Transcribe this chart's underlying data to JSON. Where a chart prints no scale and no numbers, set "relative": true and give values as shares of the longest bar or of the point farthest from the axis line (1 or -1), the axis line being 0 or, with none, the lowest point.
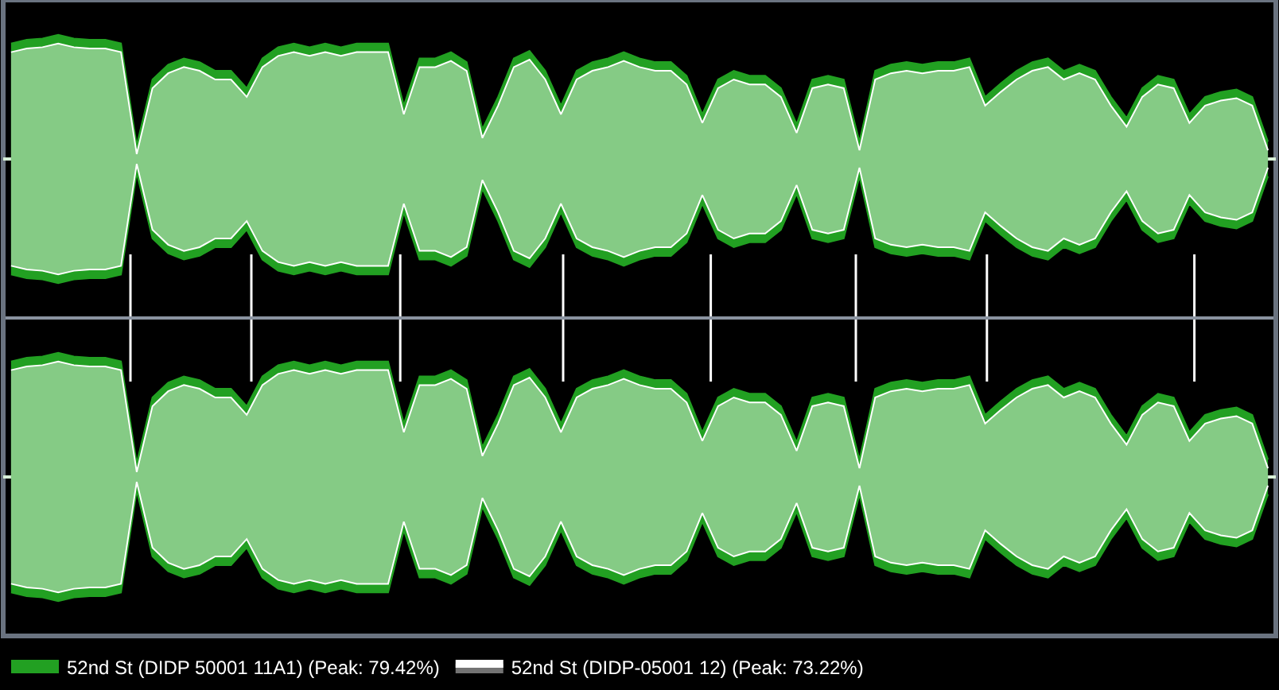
{
  "chart_data": [
    {
      "type": "area",
      "relative": true,
      "legend": "bottom left",
      "grid": false,
      "categories": [
        null,
        null,
        null,
        null,
        null,
        null,
        null,
        null,
        null,
        null,
        null,
        null,
        null,
        null,
        null,
        null,
        null,
        null,
        null,
        null,
        null,
        null,
        null,
        null,
        null,
        null,
        null,
        null,
        null,
        null,
        null,
        null,
        null,
        null,
        null,
        null,
        null,
        null,
        null,
        null,
        null,
        null,
        null,
        null,
        null,
        null,
        null,
        null,
        null,
        null,
        null,
        null,
        null,
        null,
        null,
        null,
        null,
        null,
        null,
        null,
        null,
        null,
        null,
        null,
        null,
        null,
        null,
        null,
        null,
        null,
        null,
        null,
        null,
        null,
        null,
        null,
        null,
        null,
        null,
        null,
        null
      ],
      "series": [
        {
          "name": "52nd St (DIDP 50001 11A1) (Peak: 79.42%)",
          "color": "#22a022",
          "values": [
            0.93,
            0.96,
            0.97,
            1.0,
            0.97,
            0.96,
            0.96,
            0.93,
            0.11,
            0.64,
            0.76,
            0.81,
            0.78,
            0.71,
            0.71,
            0.57,
            0.81,
            0.9,
            0.93,
            0.9,
            0.93,
            0.9,
            0.93,
            0.93,
            0.93,
            0.43,
            0.81,
            0.81,
            0.86,
            0.78,
            0.24,
            0.5,
            0.81,
            0.87,
            0.71,
            0.43,
            0.71,
            0.78,
            0.81,
            0.86,
            0.81,
            0.78,
            0.78,
            0.67,
            0.36,
            0.64,
            0.71,
            0.67,
            0.67,
            0.57,
            0.28,
            0.64,
            0.67,
            0.64,
            0.14,
            0.71,
            0.76,
            0.78,
            0.76,
            0.78,
            0.78,
            0.81,
            0.5,
            0.61,
            0.71,
            0.78,
            0.81,
            0.71,
            0.76,
            0.71,
            0.5,
            0.33,
            0.57,
            0.67,
            0.64,
            0.36,
            0.5,
            0.54,
            0.56,
            0.5,
            0.14
          ]
        },
        {
          "color": "#22a022",
          "values": [
            -0.93,
            -0.96,
            -0.97,
            -1.0,
            -0.97,
            -0.96,
            -0.96,
            -0.93,
            -0.11,
            -0.64,
            -0.76,
            -0.81,
            -0.78,
            -0.71,
            -0.71,
            -0.57,
            -0.81,
            -0.9,
            -0.93,
            -0.9,
            -0.93,
            -0.9,
            -0.93,
            -0.93,
            -0.93,
            -0.43,
            -0.81,
            -0.81,
            -0.86,
            -0.78,
            -0.24,
            -0.5,
            -0.81,
            -0.87,
            -0.71,
            -0.43,
            -0.71,
            -0.78,
            -0.81,
            -0.86,
            -0.81,
            -0.78,
            -0.78,
            -0.67,
            -0.36,
            -0.64,
            -0.71,
            -0.67,
            -0.67,
            -0.57,
            -0.28,
            -0.64,
            -0.67,
            -0.64,
            -0.14,
            -0.71,
            -0.76,
            -0.78,
            -0.76,
            -0.78,
            -0.78,
            -0.81,
            -0.5,
            -0.61,
            -0.71,
            -0.78,
            -0.81,
            -0.71,
            -0.76,
            -0.71,
            -0.5,
            -0.33,
            -0.57,
            -0.67,
            -0.64,
            -0.36,
            -0.5,
            -0.54,
            -0.56,
            -0.5,
            -0.14
          ]
        },
        {
          "name": "52nd St (DIDP-05001 12) (Peak: 73.22%)",
          "color": "#ffffff",
          "values": [
            0.86,
            0.89,
            0.9,
            0.93,
            0.9,
            0.89,
            0.89,
            0.86,
            0.04,
            0.57,
            0.69,
            0.74,
            0.71,
            0.64,
            0.64,
            0.5,
            0.74,
            0.83,
            0.86,
            0.83,
            0.86,
            0.83,
            0.86,
            0.86,
            0.86,
            0.36,
            0.74,
            0.74,
            0.79,
            0.71,
            0.17,
            0.43,
            0.74,
            0.8,
            0.64,
            0.36,
            0.64,
            0.71,
            0.74,
            0.79,
            0.74,
            0.71,
            0.71,
            0.6,
            0.29,
            0.57,
            0.64,
            0.6,
            0.6,
            0.5,
            0.21,
            0.57,
            0.6,
            0.57,
            0.07,
            0.64,
            0.69,
            0.71,
            0.69,
            0.71,
            0.71,
            0.74,
            0.43,
            0.54,
            0.64,
            0.71,
            0.74,
            0.64,
            0.69,
            0.64,
            0.43,
            0.26,
            0.5,
            0.6,
            0.57,
            0.29,
            0.43,
            0.47,
            0.49,
            0.43,
            0.07
          ]
        },
        {
          "color": "#ffffff",
          "values": [
            -0.86,
            -0.89,
            -0.9,
            -0.93,
            -0.9,
            -0.89,
            -0.89,
            -0.86,
            -0.04,
            -0.57,
            -0.69,
            -0.74,
            -0.71,
            -0.64,
            -0.64,
            -0.5,
            -0.74,
            -0.83,
            -0.86,
            -0.83,
            -0.86,
            -0.83,
            -0.86,
            -0.86,
            -0.86,
            -0.36,
            -0.74,
            -0.74,
            -0.79,
            -0.71,
            -0.17,
            -0.43,
            -0.74,
            -0.8,
            -0.64,
            -0.36,
            -0.64,
            -0.71,
            -0.74,
            -0.79,
            -0.74,
            -0.71,
            -0.71,
            -0.6,
            -0.29,
            -0.57,
            -0.64,
            -0.6,
            -0.6,
            -0.5,
            -0.21,
            -0.57,
            -0.6,
            -0.57,
            -0.07,
            -0.64,
            -0.69,
            -0.71,
            -0.69,
            -0.71,
            -0.71,
            -0.74,
            -0.43,
            -0.54,
            -0.64,
            -0.71,
            -0.74,
            -0.64,
            -0.69,
            -0.64,
            -0.43,
            -0.26,
            -0.5,
            -0.6,
            -0.57,
            -0.29,
            -0.43,
            -0.47,
            -0.49,
            -0.43,
            -0.07
          ]
        }
      ]
    },
    {
      "type": "area",
      "relative": true,
      "grid": false,
      "categories": [
        null,
        null,
        null,
        null,
        null,
        null,
        null,
        null,
        null,
        null,
        null,
        null,
        null,
        null,
        null,
        null,
        null,
        null,
        null,
        null,
        null,
        null,
        null,
        null,
        null,
        null,
        null,
        null,
        null,
        null,
        null,
        null,
        null,
        null,
        null,
        null,
        null,
        null,
        null,
        null,
        null,
        null,
        null,
        null,
        null,
        null,
        null,
        null,
        null,
        null,
        null,
        null,
        null,
        null,
        null,
        null,
        null,
        null,
        null,
        null,
        null,
        null,
        null,
        null,
        null,
        null,
        null,
        null,
        null,
        null,
        null,
        null,
        null,
        null,
        null,
        null,
        null,
        null,
        null,
        null,
        null
      ],
      "series": [
        {
          "color": "#22a022",
          "values": [
            0.93,
            0.96,
            0.97,
            1.0,
            0.97,
            0.96,
            0.96,
            0.93,
            0.11,
            0.64,
            0.76,
            0.81,
            0.78,
            0.71,
            0.71,
            0.57,
            0.81,
            0.9,
            0.93,
            0.9,
            0.93,
            0.9,
            0.93,
            0.93,
            0.93,
            0.43,
            0.81,
            0.81,
            0.86,
            0.78,
            0.24,
            0.5,
            0.81,
            0.87,
            0.71,
            0.43,
            0.71,
            0.78,
            0.81,
            0.86,
            0.81,
            0.78,
            0.78,
            0.67,
            0.36,
            0.64,
            0.71,
            0.67,
            0.67,
            0.57,
            0.28,
            0.64,
            0.67,
            0.64,
            0.14,
            0.71,
            0.76,
            0.78,
            0.76,
            0.78,
            0.78,
            0.81,
            0.5,
            0.61,
            0.71,
            0.78,
            0.81,
            0.71,
            0.76,
            0.71,
            0.5,
            0.33,
            0.57,
            0.67,
            0.64,
            0.36,
            0.5,
            0.54,
            0.56,
            0.5,
            0.14
          ]
        },
        {
          "color": "#22a022",
          "values": [
            -0.93,
            -0.96,
            -0.97,
            -1.0,
            -0.97,
            -0.96,
            -0.96,
            -0.93,
            -0.11,
            -0.64,
            -0.76,
            -0.81,
            -0.78,
            -0.71,
            -0.71,
            -0.57,
            -0.81,
            -0.9,
            -0.93,
            -0.9,
            -0.93,
            -0.9,
            -0.93,
            -0.93,
            -0.93,
            -0.43,
            -0.81,
            -0.81,
            -0.86,
            -0.78,
            -0.24,
            -0.5,
            -0.81,
            -0.87,
            -0.71,
            -0.43,
            -0.71,
            -0.78,
            -0.81,
            -0.86,
            -0.81,
            -0.78,
            -0.78,
            -0.67,
            -0.36,
            -0.64,
            -0.71,
            -0.67,
            -0.67,
            -0.57,
            -0.28,
            -0.64,
            -0.67,
            -0.64,
            -0.14,
            -0.71,
            -0.76,
            -0.78,
            -0.76,
            -0.78,
            -0.78,
            -0.81,
            -0.5,
            -0.61,
            -0.71,
            -0.78,
            -0.81,
            -0.71,
            -0.76,
            -0.71,
            -0.5,
            -0.33,
            -0.57,
            -0.67,
            -0.64,
            -0.36,
            -0.5,
            -0.54,
            -0.56,
            -0.5,
            -0.14
          ]
        },
        {
          "color": "#ffffff",
          "values": [
            0.86,
            0.89,
            0.9,
            0.93,
            0.9,
            0.89,
            0.89,
            0.86,
            0.04,
            0.57,
            0.69,
            0.74,
            0.71,
            0.64,
            0.64,
            0.5,
            0.74,
            0.83,
            0.86,
            0.83,
            0.86,
            0.83,
            0.86,
            0.86,
            0.86,
            0.36,
            0.74,
            0.74,
            0.79,
            0.71,
            0.17,
            0.43,
            0.74,
            0.8,
            0.64,
            0.36,
            0.64,
            0.71,
            0.74,
            0.79,
            0.74,
            0.71,
            0.71,
            0.6,
            0.29,
            0.57,
            0.64,
            0.6,
            0.6,
            0.5,
            0.21,
            0.57,
            0.6,
            0.57,
            0.07,
            0.64,
            0.69,
            0.71,
            0.69,
            0.71,
            0.71,
            0.74,
            0.43,
            0.54,
            0.64,
            0.71,
            0.74,
            0.64,
            0.69,
            0.64,
            0.43,
            0.26,
            0.5,
            0.6,
            0.57,
            0.29,
            0.43,
            0.47,
            0.49,
            0.43,
            0.07
          ]
        },
        {
          "color": "#ffffff",
          "values": [
            -0.86,
            -0.89,
            -0.9,
            -0.93,
            -0.9,
            -0.89,
            -0.89,
            -0.86,
            -0.04,
            -0.57,
            -0.69,
            -0.74,
            -0.71,
            -0.64,
            -0.64,
            -0.5,
            -0.74,
            -0.83,
            -0.86,
            -0.83,
            -0.86,
            -0.83,
            -0.86,
            -0.86,
            -0.86,
            -0.36,
            -0.74,
            -0.74,
            -0.79,
            -0.71,
            -0.17,
            -0.43,
            -0.74,
            -0.8,
            -0.64,
            -0.36,
            -0.64,
            -0.71,
            -0.74,
            -0.79,
            -0.74,
            -0.71,
            -0.71,
            -0.6,
            -0.29,
            -0.57,
            -0.64,
            -0.6,
            -0.6,
            -0.5,
            -0.21,
            -0.57,
            -0.6,
            -0.57,
            -0.07,
            -0.64,
            -0.69,
            -0.71,
            -0.69,
            -0.71,
            -0.71,
            -0.74,
            -0.43,
            -0.54,
            -0.64,
            -0.71,
            -0.74,
            -0.64,
            -0.69,
            -0.64,
            -0.43,
            -0.26,
            -0.5,
            -0.6,
            -0.57,
            -0.29,
            -0.43,
            -0.47,
            -0.49,
            -0.43,
            -0.07
          ]
        }
      ]
    }
  ]
}
